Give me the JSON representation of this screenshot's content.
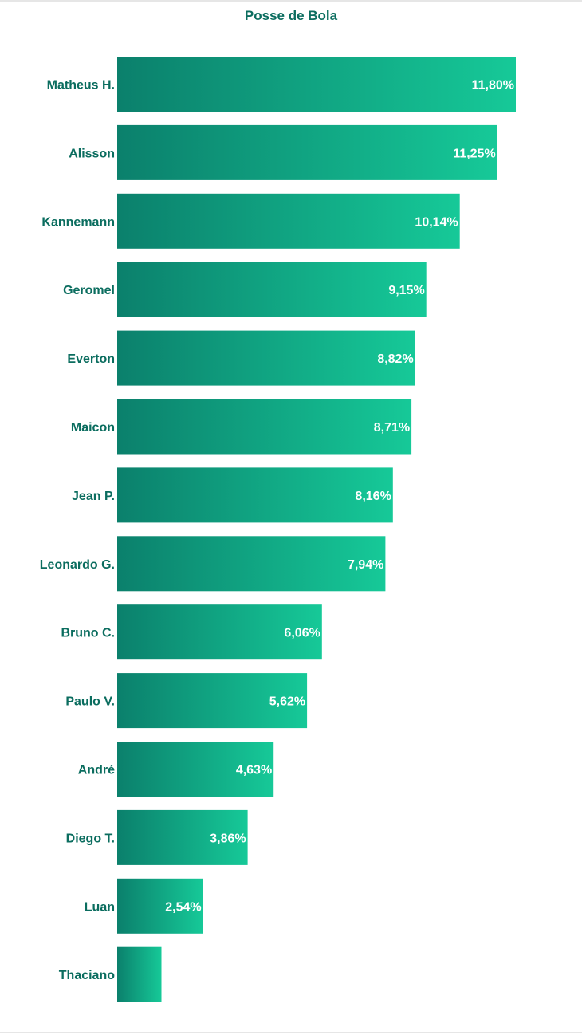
{
  "chart_data": {
    "type": "bar",
    "orientation": "horizontal",
    "title": "Posse de Bola",
    "categories": [
      "Matheus H.",
      "Alisson",
      "Kannemann",
      "Geromel",
      "Everton",
      "Maicon",
      "Jean P.",
      "Leonardo G.",
      "Bruno C.",
      "Paulo V.",
      "André",
      "Diego T.",
      "Luan",
      "Thaciano"
    ],
    "values": [
      11.8,
      11.25,
      10.14,
      9.15,
      8.82,
      8.71,
      8.16,
      7.94,
      6.06,
      5.62,
      4.63,
      3.86,
      2.54,
      1.31
    ],
    "value_labels": [
      "11,80%",
      "11,25%",
      "10,14%",
      "9,15%",
      "8,82%",
      "8,71%",
      "8,16%",
      "7,94%",
      "6,06%",
      "5,62%",
      "4,63%",
      "3,86%",
      "2,54%",
      ""
    ],
    "xlim": [
      0,
      11.8
    ],
    "grid": false,
    "legend": "none",
    "colors": {
      "bar_start": "#0b806c",
      "bar_end": "#16c998",
      "category_text": "#0b6d5f",
      "value_text": "#ffffff"
    }
  }
}
